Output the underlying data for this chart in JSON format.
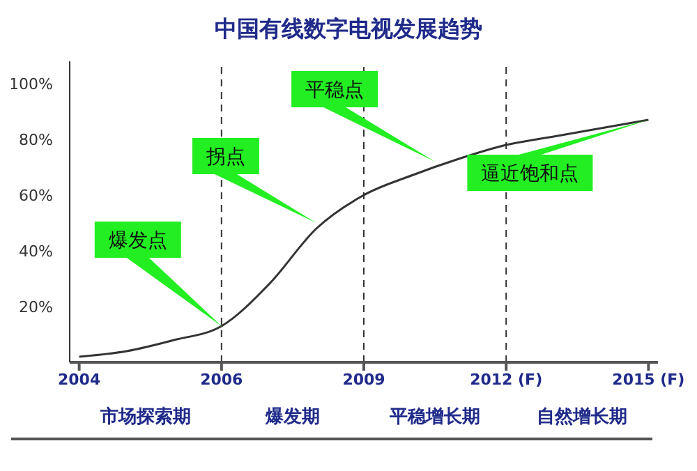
{
  "chart_data": {
    "type": "line",
    "title": "中国有线数字电视发展趋势",
    "categories": [
      "2004",
      null,
      null,
      "2006",
      null,
      null,
      "2009",
      null,
      null,
      "2012 (F)",
      null,
      null,
      "2015 (F)"
    ],
    "series": [
      {
        "color": "#333333",
        "values": [
          2,
          4,
          8,
          13,
          28,
          48,
          60,
          67,
          73,
          78,
          81,
          84,
          87
        ]
      }
    ],
    "ylim": [
      0,
      108
    ],
    "yticks": [
      {
        "value": 20,
        "label": "20%"
      },
      {
        "value": 40,
        "label": "40%"
      },
      {
        "value": 60,
        "label": "60%"
      },
      {
        "value": 80,
        "label": "80%"
      },
      {
        "value": 100,
        "label": "100%"
      }
    ],
    "ref_lines": [
      {
        "axis": "x",
        "value": "2006",
        "line_style": "dashed",
        "color": "#333333"
      },
      {
        "axis": "x",
        "value": "2009",
        "line_style": "dashed",
        "color": "#333333"
      },
      {
        "axis": "x",
        "value": "2012 (F)",
        "line_style": "dashed",
        "color": "#333333"
      }
    ],
    "annotations": [
      "爆发点",
      "拐点",
      "平稳点",
      {
        "text": "逼近饱和点",
        "x": "2015 (F)",
        "y": 87
      },
      "市场探索期",
      "爆发期",
      "平稳增长期",
      "自然增长期"
    ],
    "grid": false,
    "legend": false,
    "marker": "none",
    "line_style": "solid"
  }
}
